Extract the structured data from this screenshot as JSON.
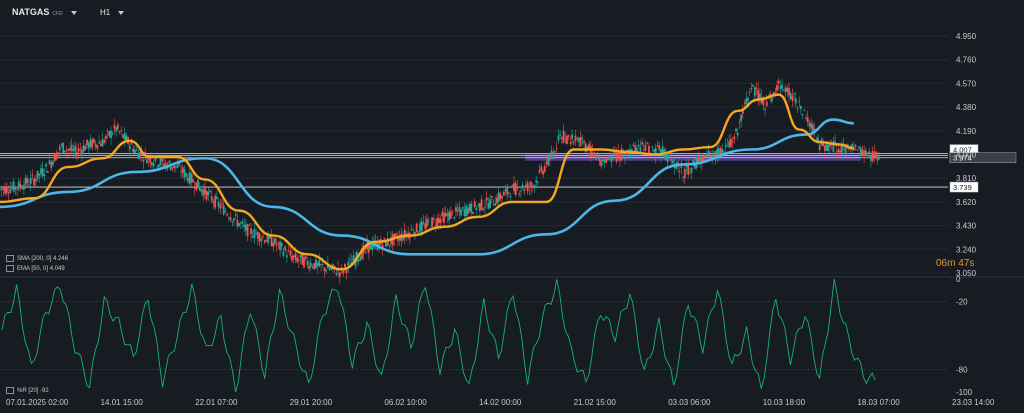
{
  "header": {
    "symbol": "NATGAS",
    "symbol_suffix": "CFD",
    "timeframe": "H1"
  },
  "legend": {
    "sma_label": "SMA [200, 0]",
    "sma_value": "4.246",
    "ema_label": "EMA [50, 0]",
    "ema_value": "4.049",
    "wr_label": "%R [20]",
    "wr_value": "-92"
  },
  "countdown": {
    "minutes": "06",
    "min_unit": "m",
    "seconds": "47",
    "sec_unit": "s"
  },
  "colors": {
    "background": "#161c22",
    "up_candle": "#26a69a",
    "down_candle": "#ef5350",
    "sma": "#4db6e8",
    "ema": "#f5a623",
    "zone": "#7b4fd6",
    "oscillator": "#18b07a"
  },
  "chart_data": [
    {
      "type": "candlestick",
      "title": "",
      "ylim": [
        3.05,
        4.95
      ],
      "y_ticks": [
        "4.950",
        "4.760",
        "4.570",
        "4.380",
        "4.190",
        "4.000",
        "3.810",
        "3.620",
        "3.430",
        "3.240",
        "3.050"
      ],
      "x_ticks": [
        "07.01.2025 02:00",
        "14.01 15:00",
        "22.01 07:00",
        "29.01 20:00",
        "06.02 10:00",
        "14.02 00:00",
        "21.02 15:00",
        "03.03 06:00",
        "10.03 18:00",
        "18.03 07:00",
        "23.03 14:00"
      ],
      "close_path_x": [
        0,
        5,
        10,
        14,
        18,
        22,
        26,
        30,
        34,
        40,
        46,
        52,
        58,
        64,
        72,
        80,
        86,
        94,
        100,
        108,
        114,
        122,
        130,
        136,
        144,
        150,
        156,
        160
      ],
      "close_path_y": [
        3.72,
        3.74,
        3.8,
        3.9,
        4.06,
        4.02,
        4.08,
        4.1,
        4.21,
        4.02,
        3.94,
        3.9,
        3.75,
        3.6,
        3.4,
        3.3,
        3.17,
        3.1,
        3.06,
        3.26,
        3.3,
        3.4,
        3.5,
        3.55,
        3.62,
        3.72,
        3.75,
        3.92
      ],
      "close_path_x2": [
        160,
        164,
        170,
        176,
        182,
        188,
        194,
        200,
        206,
        212,
        216,
        220,
        224,
        228,
        232,
        236,
        240,
        246,
        252,
        258
      ],
      "close_path_y2": [
        3.92,
        4.15,
        4.1,
        3.95,
        4.0,
        4.05,
        4.02,
        3.85,
        3.98,
        4.02,
        4.18,
        4.55,
        4.4,
        4.55,
        4.48,
        4.3,
        4.08,
        4.05,
        4.02,
        3.97
      ],
      "series": [
        {
          "name": "SMA [200, 0]",
          "x": [
            0,
            20,
            40,
            60,
            80,
            100,
            120,
            140,
            160,
            180,
            200,
            220,
            236,
            244,
            250
          ],
          "values": [
            3.58,
            3.7,
            3.86,
            3.97,
            3.58,
            3.35,
            3.2,
            3.2,
            3.36,
            3.63,
            3.92,
            4.04,
            4.16,
            4.28,
            4.25
          ]
        },
        {
          "name": "EMA [50, 0]",
          "x": [
            0,
            10,
            20,
            30,
            38,
            44,
            52,
            60,
            70,
            80,
            90,
            100,
            110,
            120,
            130,
            140,
            150,
            160,
            168,
            176,
            184,
            192,
            200,
            208,
            216,
            222,
            228,
            234,
            240,
            246,
            250
          ],
          "values": [
            3.62,
            3.65,
            3.9,
            3.97,
            4.11,
            3.98,
            3.98,
            3.8,
            3.55,
            3.35,
            3.2,
            3.08,
            3.3,
            3.35,
            3.42,
            3.5,
            3.62,
            3.62,
            4.04,
            4.04,
            4.02,
            4.0,
            4.04,
            4.06,
            4.35,
            4.44,
            4.48,
            4.2,
            4.1,
            4.08,
            4.05
          ]
        }
      ],
      "horizontal_levels": [
        {
          "value": 4.007,
          "label": "4.007"
        },
        {
          "value": 3.992,
          "label": "3.992"
        },
        {
          "value": 3.974,
          "label": "3.974"
        },
        {
          "value": 3.739,
          "label": "3.739"
        }
      ],
      "zone": {
        "from_x": 152,
        "to_x": 250,
        "low": 3.95,
        "high": 4.0
      }
    },
    {
      "type": "line",
      "name": "%R [20]",
      "ylim": [
        -100,
        0
      ],
      "y_ticks": [
        "0",
        "-20",
        "-80",
        "-100"
      ],
      "values": [
        -45,
        -10,
        -80,
        -30,
        -5,
        -60,
        -95,
        -20,
        -40,
        -70,
        -15,
        -90,
        -50,
        -8,
        -65,
        -35,
        -100,
        -25,
        -85,
        -12,
        -55,
        -95,
        -30,
        -5,
        -75,
        -40,
        -90,
        -18,
        -60,
        -2,
        -80,
        -45,
        -98,
        -22,
        -70,
        -10,
        -88,
        -35,
        -5,
        -66,
        -92,
        -28,
        -50,
        -12,
        -84,
        -40,
        -96,
        -20,
        -60,
        -8,
        -78,
        -48,
        -100,
        -15,
        -70,
        -30,
        -90,
        -5,
        -55,
        -85,
        -92
      ]
    }
  ]
}
